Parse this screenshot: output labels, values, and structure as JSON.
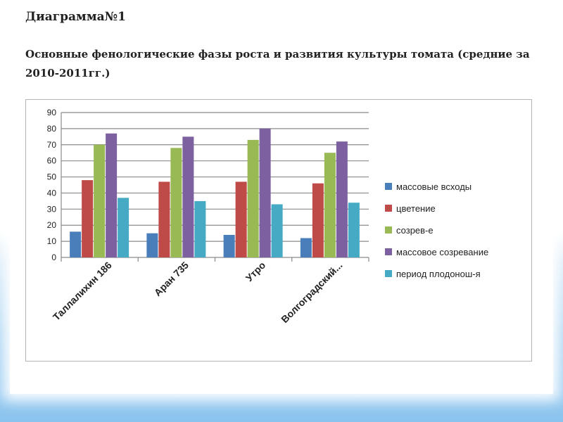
{
  "slide": {
    "heading": "Диаграмма№1",
    "subtitle": "Основные фенологические фазы роста и развития культуры томата (средние за 2010-2011гг.)"
  },
  "chart_data": {
    "type": "bar",
    "categories": [
      "Таллалихин 186",
      "Аран 735",
      "Утро",
      "Волгоградский..."
    ],
    "series": [
      {
        "name": "массовые всходы",
        "color": "#4a7ebb",
        "values": [
          16,
          15,
          14,
          12
        ]
      },
      {
        "name": "цветение",
        "color": "#be4b48",
        "values": [
          48,
          47,
          47,
          46
        ]
      },
      {
        "name": "созрев-е",
        "color": "#98b954",
        "values": [
          70,
          68,
          73,
          65
        ]
      },
      {
        "name": "массовое созревание",
        "color": "#7d60a0",
        "values": [
          77,
          75,
          80,
          72
        ]
      },
      {
        "name": "период плодонош-я",
        "color": "#46aac5",
        "values": [
          37,
          35,
          33,
          34
        ]
      }
    ],
    "yticks": [
      "0",
      "10",
      "20",
      "30",
      "40",
      "50",
      "60",
      "70",
      "80",
      "90"
    ],
    "ylim": [
      0,
      90
    ],
    "grid": true,
    "legend": "right"
  }
}
